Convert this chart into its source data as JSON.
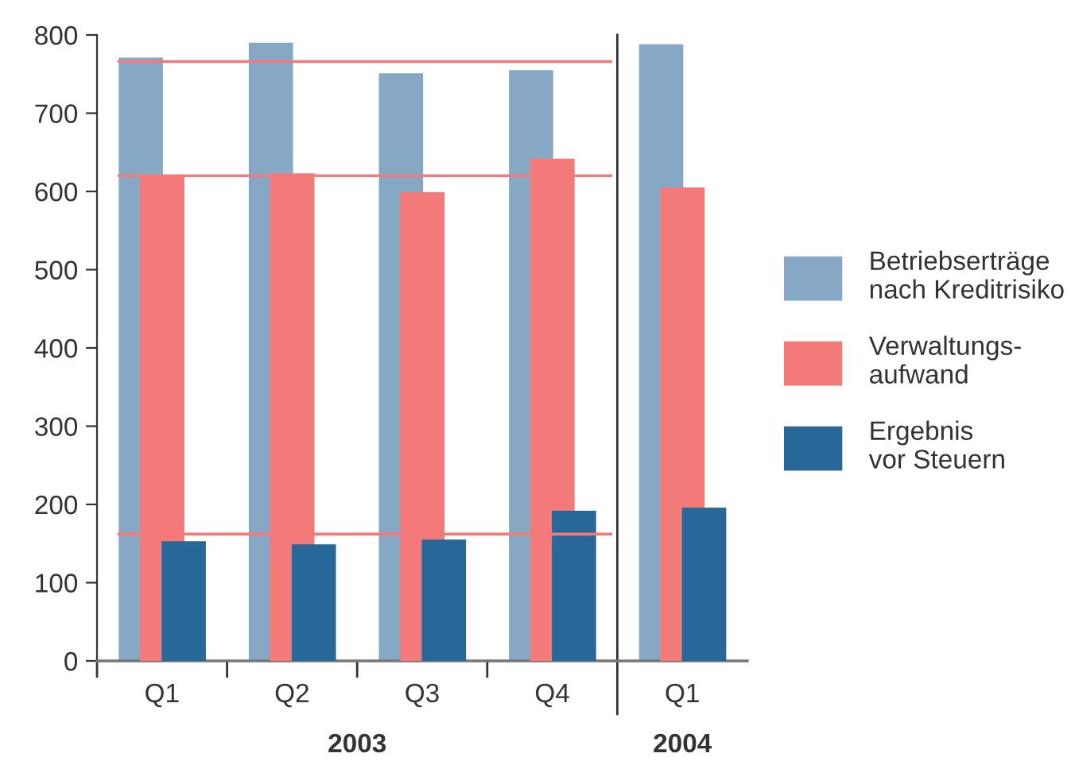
{
  "chart_data": {
    "type": "bar",
    "categories": [
      "Q1",
      "Q2",
      "Q3",
      "Q4",
      "Q1"
    ],
    "series": [
      {
        "name": "Betriebserträge\nnach Kreditrisiko",
        "color": "#86a8c4",
        "values": [
          771,
          790,
          751,
          755,
          788
        ]
      },
      {
        "name": "Verwaltungs-\naufwand",
        "color": "#f37a78",
        "values": [
          620,
          623,
          599,
          642,
          605
        ]
      },
      {
        "name": "Ergebnis\nvor Steuern",
        "color": "#276899",
        "values": [
          153,
          149,
          155,
          192,
          196
        ]
      }
    ],
    "ylim": [
      0,
      800
    ],
    "yticks": [
      0,
      100,
      200,
      300,
      400,
      500,
      600,
      700,
      800
    ],
    "ref_lines": [
      {
        "axis": "y",
        "value": 766,
        "color": "#f37a78"
      },
      {
        "axis": "y",
        "value": 620,
        "color": "#f37a78"
      },
      {
        "axis": "y",
        "value": 162,
        "color": "#f37a78"
      }
    ],
    "annotations": [
      "2003",
      "2004"
    ],
    "legend": "right",
    "grid": false
  }
}
